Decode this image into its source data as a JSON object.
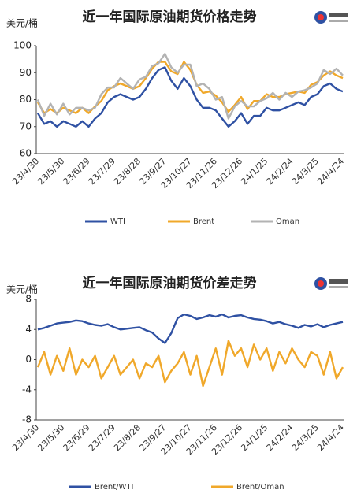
{
  "chart_data": [
    {
      "type": "line",
      "title": "近一年国际原油期货价格走势",
      "y_label": "美元/桶",
      "categories": [
        "23/4/30",
        null,
        null,
        null,
        "23/5/30",
        null,
        null,
        null,
        "23/6/29",
        null,
        null,
        null,
        "23/7/29",
        null,
        null,
        null,
        "23/8/28",
        null,
        null,
        null,
        "23/9/27",
        null,
        null,
        null,
        "23/10/27",
        null,
        null,
        null,
        "23/11/26",
        null,
        null,
        null,
        "23/12/26",
        null,
        null,
        null,
        "24/1/25",
        null,
        null,
        null,
        "24/2/24",
        null,
        null,
        null,
        "24/3/25",
        null,
        null,
        null,
        "24/4/24"
      ],
      "series": [
        {
          "name": "WTI",
          "color": "#2f51a3",
          "values": [
            75,
            71,
            72,
            70,
            72,
            71,
            70,
            72,
            70,
            73,
            75,
            79,
            81,
            82,
            81,
            80,
            81,
            84,
            88,
            91,
            92,
            87,
            84,
            88,
            85,
            80,
            77,
            77,
            76,
            73,
            70,
            72,
            75,
            71,
            74,
            74,
            77,
            76,
            76,
            77,
            78,
            79,
            78,
            81,
            82,
            85,
            86,
            84,
            83
          ]
        },
        {
          "name": "Brent",
          "color": "#f0a82a",
          "values": [
            79,
            75,
            76.5,
            75,
            77,
            76,
            75,
            77,
            75,
            77.5,
            79.5,
            83.5,
            85,
            86,
            85,
            84,
            85,
            88,
            91.5,
            94,
            94,
            90.5,
            89.5,
            94,
            91,
            85.5,
            82.5,
            83,
            81.5,
            79,
            75.5,
            78,
            81,
            76.5,
            79.5,
            79.5,
            82,
            81,
            81,
            82,
            82.5,
            83,
            82.5,
            85.5,
            86.5,
            89,
            90.5,
            89,
            88
          ]
        },
        {
          "name": "Oman",
          "color": "#b3b3b3",
          "values": [
            80,
            74,
            78.5,
            74.5,
            78.5,
            74.5,
            77,
            77,
            76,
            77,
            82,
            84.5,
            84.5,
            88,
            86,
            84,
            87.5,
            88.5,
            92.5,
            93.5,
            97,
            92,
            90,
            93,
            93,
            85,
            86,
            84,
            80,
            81,
            73,
            77.5,
            79.5,
            77.5,
            77.5,
            79.5,
            80.5,
            82.5,
            80,
            82.5,
            81,
            83,
            83.5,
            84.5,
            86,
            91,
            89.5,
            91.5,
            89
          ]
        }
      ],
      "ylim": [
        60,
        100
      ],
      "yticks": [
        60,
        70,
        80,
        90,
        100
      ]
    },
    {
      "type": "line",
      "title": "近一年国际原油期货价差走势",
      "y_label": "美元/桶",
      "categories": [
        "23/4/30",
        null,
        null,
        null,
        "23/5/30",
        null,
        null,
        null,
        "23/6/29",
        null,
        null,
        null,
        "23/7/29",
        null,
        null,
        null,
        "23/8/28",
        null,
        null,
        null,
        "23/9/27",
        null,
        null,
        null,
        "23/10/27",
        null,
        null,
        null,
        "23/11/26",
        null,
        null,
        null,
        "23/12/26",
        null,
        null,
        null,
        "24/1/25",
        null,
        null,
        null,
        "24/2/24",
        null,
        null,
        null,
        "24/3/25",
        null,
        null,
        null,
        "24/4/24"
      ],
      "series": [
        {
          "name": "Brent/WTI",
          "color": "#2f51a3",
          "values": [
            4,
            4.2,
            4.5,
            4.8,
            4.9,
            5,
            5.2,
            5.1,
            4.8,
            4.6,
            4.5,
            4.7,
            4.3,
            4.0,
            4.1,
            4.2,
            4.3,
            3.9,
            3.6,
            2.8,
            2.2,
            3.5,
            5.5,
            6.0,
            5.8,
            5.4,
            5.6,
            5.9,
            5.7,
            6.0,
            5.6,
            5.8,
            5.9,
            5.6,
            5.4,
            5.3,
            5.1,
            4.8,
            5.0,
            4.7,
            4.5,
            4.2,
            4.6,
            4.4,
            4.7,
            4.3,
            4.6,
            4.8,
            5.0
          ]
        },
        {
          "name": "Brent/Oman",
          "color": "#f0a82a",
          "values": [
            -1,
            1,
            -2,
            0.5,
            -1.5,
            1.5,
            -2,
            0,
            -1,
            0.5,
            -2.5,
            -1,
            0.5,
            -2,
            -1,
            0,
            -2.5,
            -0.5,
            -1,
            0.5,
            -3,
            -1.5,
            -0.5,
            1,
            -2,
            0.5,
            -3.5,
            -1,
            1.5,
            -2,
            2.5,
            0.5,
            1.5,
            -1,
            2,
            0,
            1.5,
            -1.5,
            1,
            -0.5,
            1.5,
            0,
            -1,
            1,
            0.5,
            -2,
            1,
            -2.5,
            -1
          ]
        }
      ],
      "ylim": [
        -8,
        8
      ],
      "yticks": [
        -8,
        -4,
        0,
        4,
        8
      ]
    }
  ]
}
